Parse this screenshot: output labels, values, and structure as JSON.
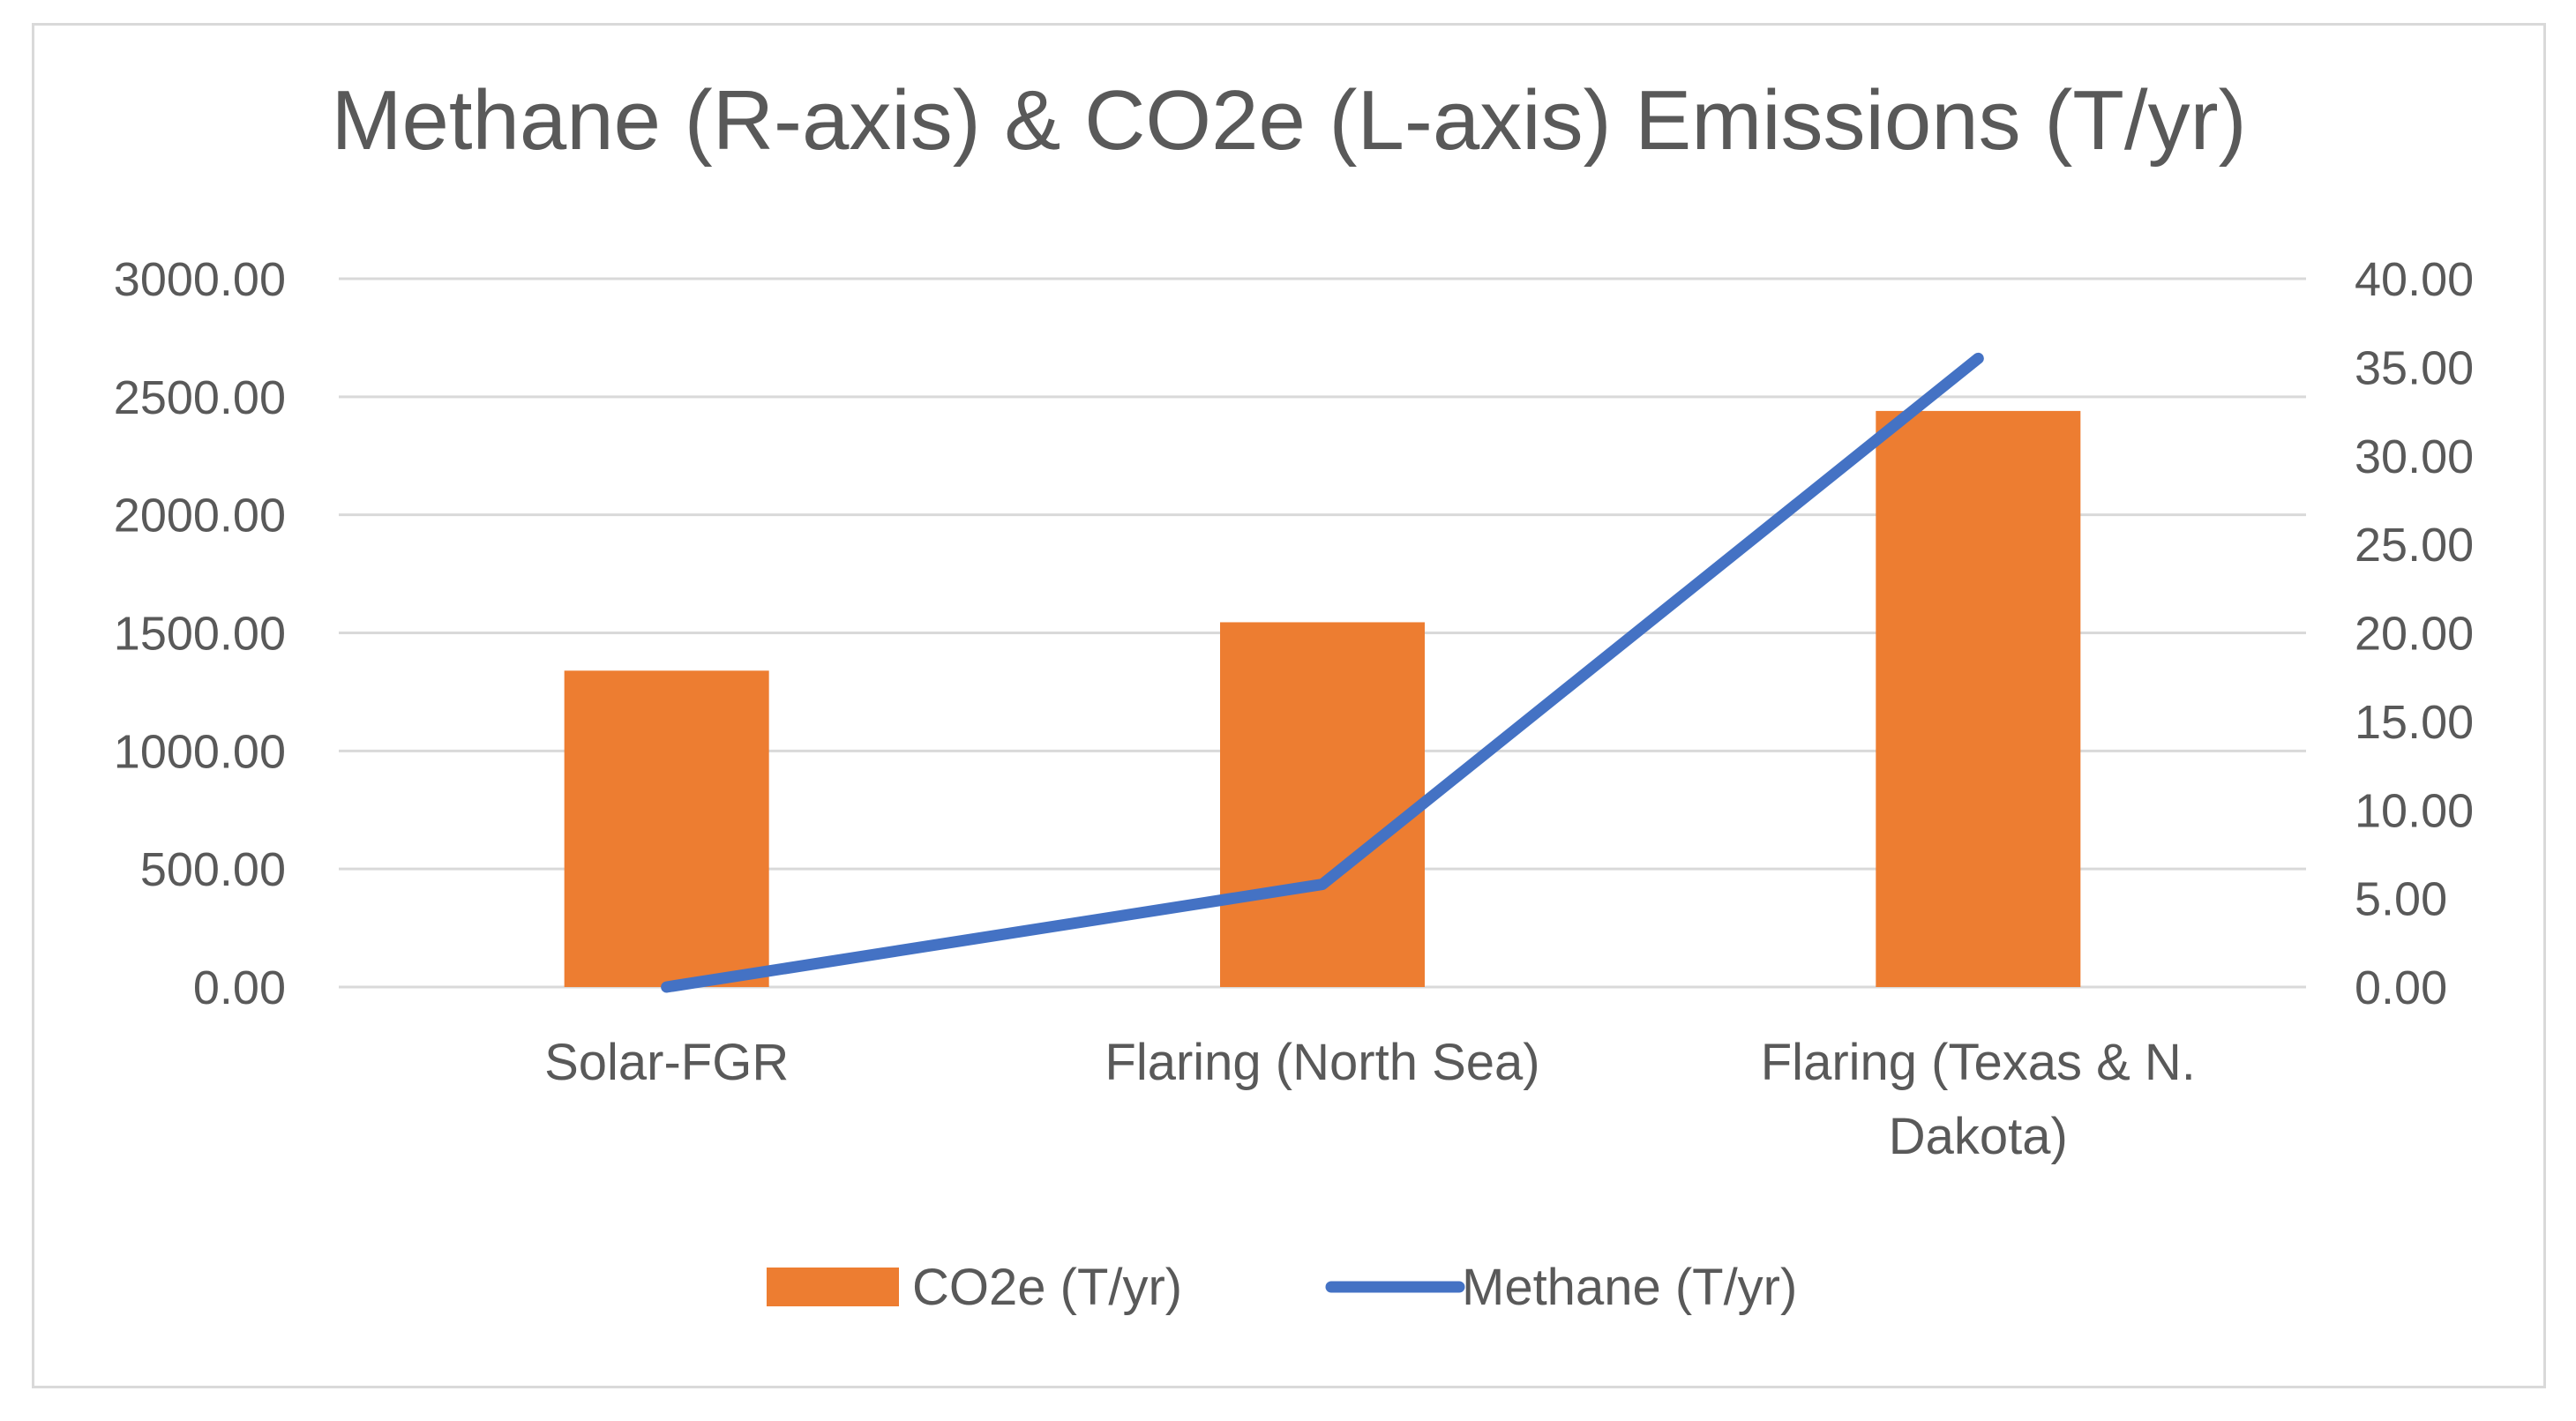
{
  "chart_data": {
    "type": "bar",
    "title": "Methane (R-axis) & CO2e (L-axis) Emissions (T/yr)",
    "categories": [
      "Solar-FGR",
      "Flaring (North Sea)",
      "Flaring (Texas & N. Dakota)"
    ],
    "category_lines": [
      [
        "Solar-FGR"
      ],
      [
        "Flaring (North Sea)"
      ],
      [
        "Flaring (Texas & N.",
        "Dakota)"
      ]
    ],
    "series": [
      {
        "name": "CO2e (T/yr)",
        "type": "bar",
        "axis": "left",
        "color": "#ED7D31",
        "values": [
          1340,
          1545,
          2440
        ]
      },
      {
        "name": "Methane (T/yr)",
        "type": "line",
        "axis": "right",
        "color": "#4472C4",
        "values": [
          0,
          5.8,
          35.5
        ]
      }
    ],
    "left_axis": {
      "min": 0,
      "max": 3000,
      "ticks": [
        "0.00",
        "500.00",
        "1000.00",
        "1500.00",
        "2000.00",
        "2500.00",
        "3000.00"
      ]
    },
    "right_axis": {
      "min": 0,
      "max": 40,
      "ticks": [
        "0.00",
        "5.00",
        "10.00",
        "15.00",
        "20.00",
        "25.00",
        "30.00",
        "35.00",
        "40.00"
      ]
    },
    "gridlines": true,
    "legend_position": "bottom",
    "xlabel": "",
    "ylabel": ""
  }
}
